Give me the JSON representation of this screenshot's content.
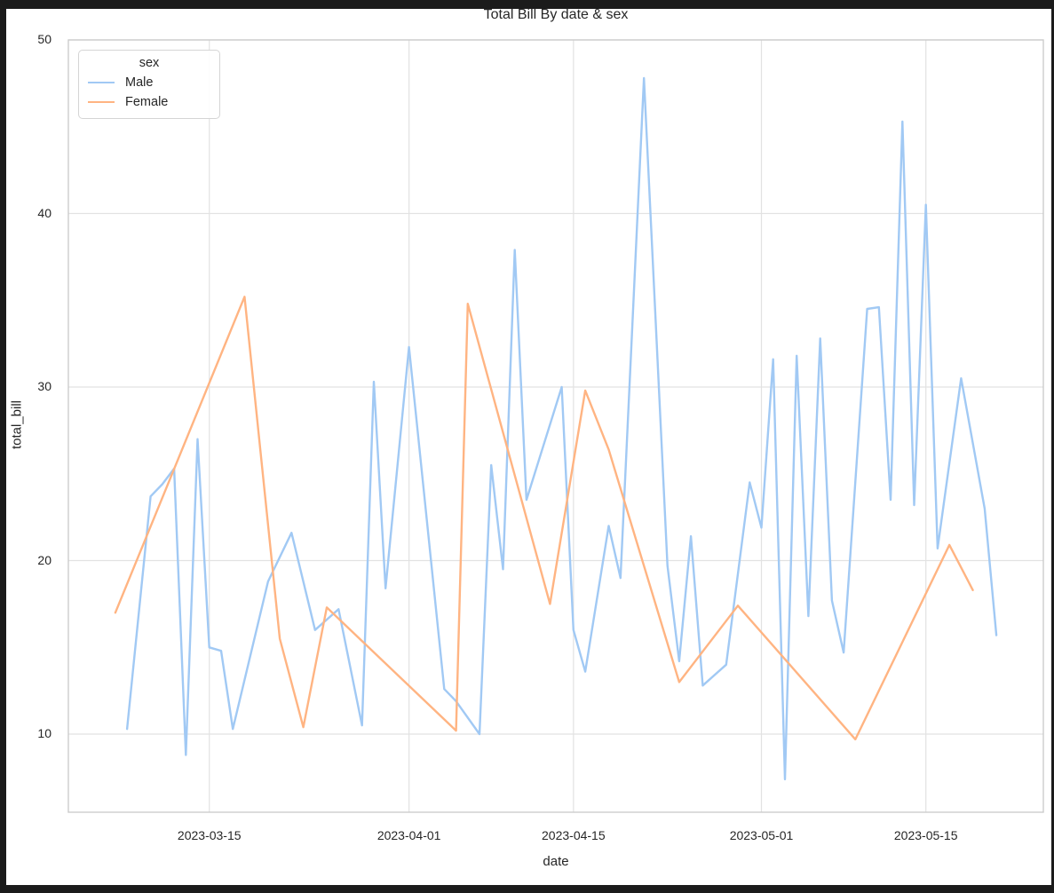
{
  "figure": {
    "background": "#ffffff",
    "chrome_color": "#1b1b1b",
    "text_color": "#262626",
    "grid_color": "#e2e2e2",
    "spine_color": "#cccccc"
  },
  "chart_data": {
    "type": "line",
    "title": "Total Bill By date & sex",
    "xlabel": "date",
    "ylabel": "total_bill",
    "legend_title": "sex",
    "legend_position": "upper left",
    "grid": true,
    "x_ticks": [
      "2023-03-15",
      "2023-04-01",
      "2023-04-15",
      "2023-05-01",
      "2023-05-15"
    ],
    "y_ticks": [
      10,
      20,
      30,
      40,
      50
    ],
    "x_domain": [
      "2023-03-03",
      "2023-05-25"
    ],
    "y_domain": [
      5.5,
      50.0
    ],
    "series": [
      {
        "name": "Male",
        "color": "#a1c9f4",
        "points": [
          [
            "2023-03-08",
            10.3
          ],
          [
            "2023-03-10",
            23.7
          ],
          [
            "2023-03-11",
            24.4
          ],
          [
            "2023-03-12",
            25.3
          ],
          [
            "2023-03-13",
            8.8
          ],
          [
            "2023-03-14",
            27.0
          ],
          [
            "2023-03-15",
            15.0
          ],
          [
            "2023-03-16",
            14.8
          ],
          [
            "2023-03-17",
            10.3
          ],
          [
            "2023-03-20",
            18.8
          ],
          [
            "2023-03-22",
            21.6
          ],
          [
            "2023-03-24",
            16.0
          ],
          [
            "2023-03-26",
            17.2
          ],
          [
            "2023-03-28",
            10.5
          ],
          [
            "2023-03-29",
            30.3
          ],
          [
            "2023-03-30",
            18.4
          ],
          [
            "2023-04-01",
            32.3
          ],
          [
            "2023-04-04",
            12.6
          ],
          [
            "2023-04-05",
            11.9
          ],
          [
            "2023-04-07",
            10.0
          ],
          [
            "2023-04-08",
            25.5
          ],
          [
            "2023-04-09",
            19.5
          ],
          [
            "2023-04-10",
            37.9
          ],
          [
            "2023-04-11",
            23.5
          ],
          [
            "2023-04-14",
            30.0
          ],
          [
            "2023-04-15",
            16.0
          ],
          [
            "2023-04-16",
            13.6
          ],
          [
            "2023-04-18",
            22.0
          ],
          [
            "2023-04-19",
            19.0
          ],
          [
            "2023-04-21",
            47.8
          ],
          [
            "2023-04-23",
            19.7
          ],
          [
            "2023-04-24",
            14.2
          ],
          [
            "2023-04-25",
            21.4
          ],
          [
            "2023-04-26",
            12.8
          ],
          [
            "2023-04-28",
            14.0
          ],
          [
            "2023-04-30",
            24.5
          ],
          [
            "2023-05-01",
            21.9
          ],
          [
            "2023-05-02",
            31.6
          ],
          [
            "2023-05-03",
            7.4
          ],
          [
            "2023-05-04",
            31.8
          ],
          [
            "2023-05-05",
            16.8
          ],
          [
            "2023-05-06",
            32.8
          ],
          [
            "2023-05-07",
            17.7
          ],
          [
            "2023-05-08",
            14.7
          ],
          [
            "2023-05-10",
            34.5
          ],
          [
            "2023-05-11",
            34.6
          ],
          [
            "2023-05-12",
            23.5
          ],
          [
            "2023-05-13",
            45.3
          ],
          [
            "2023-05-14",
            23.2
          ],
          [
            "2023-05-15",
            40.5
          ],
          [
            "2023-05-16",
            20.7
          ],
          [
            "2023-05-18",
            30.5
          ],
          [
            "2023-05-20",
            23.0
          ],
          [
            "2023-05-21",
            15.7
          ]
        ]
      },
      {
        "name": "Female",
        "color": "#ffb482",
        "points": [
          [
            "2023-03-07",
            17.0
          ],
          [
            "2023-03-18",
            35.2
          ],
          [
            "2023-03-21",
            15.5
          ],
          [
            "2023-03-23",
            10.4
          ],
          [
            "2023-03-25",
            17.3
          ],
          [
            "2023-04-05",
            10.2
          ],
          [
            "2023-04-06",
            34.8
          ],
          [
            "2023-04-13",
            17.5
          ],
          [
            "2023-04-16",
            29.8
          ],
          [
            "2023-04-18",
            26.4
          ],
          [
            "2023-04-24",
            13.0
          ],
          [
            "2023-04-29",
            17.4
          ],
          [
            "2023-05-09",
            9.7
          ],
          [
            "2023-05-17",
            20.9
          ],
          [
            "2023-05-19",
            18.3
          ]
        ]
      }
    ]
  }
}
